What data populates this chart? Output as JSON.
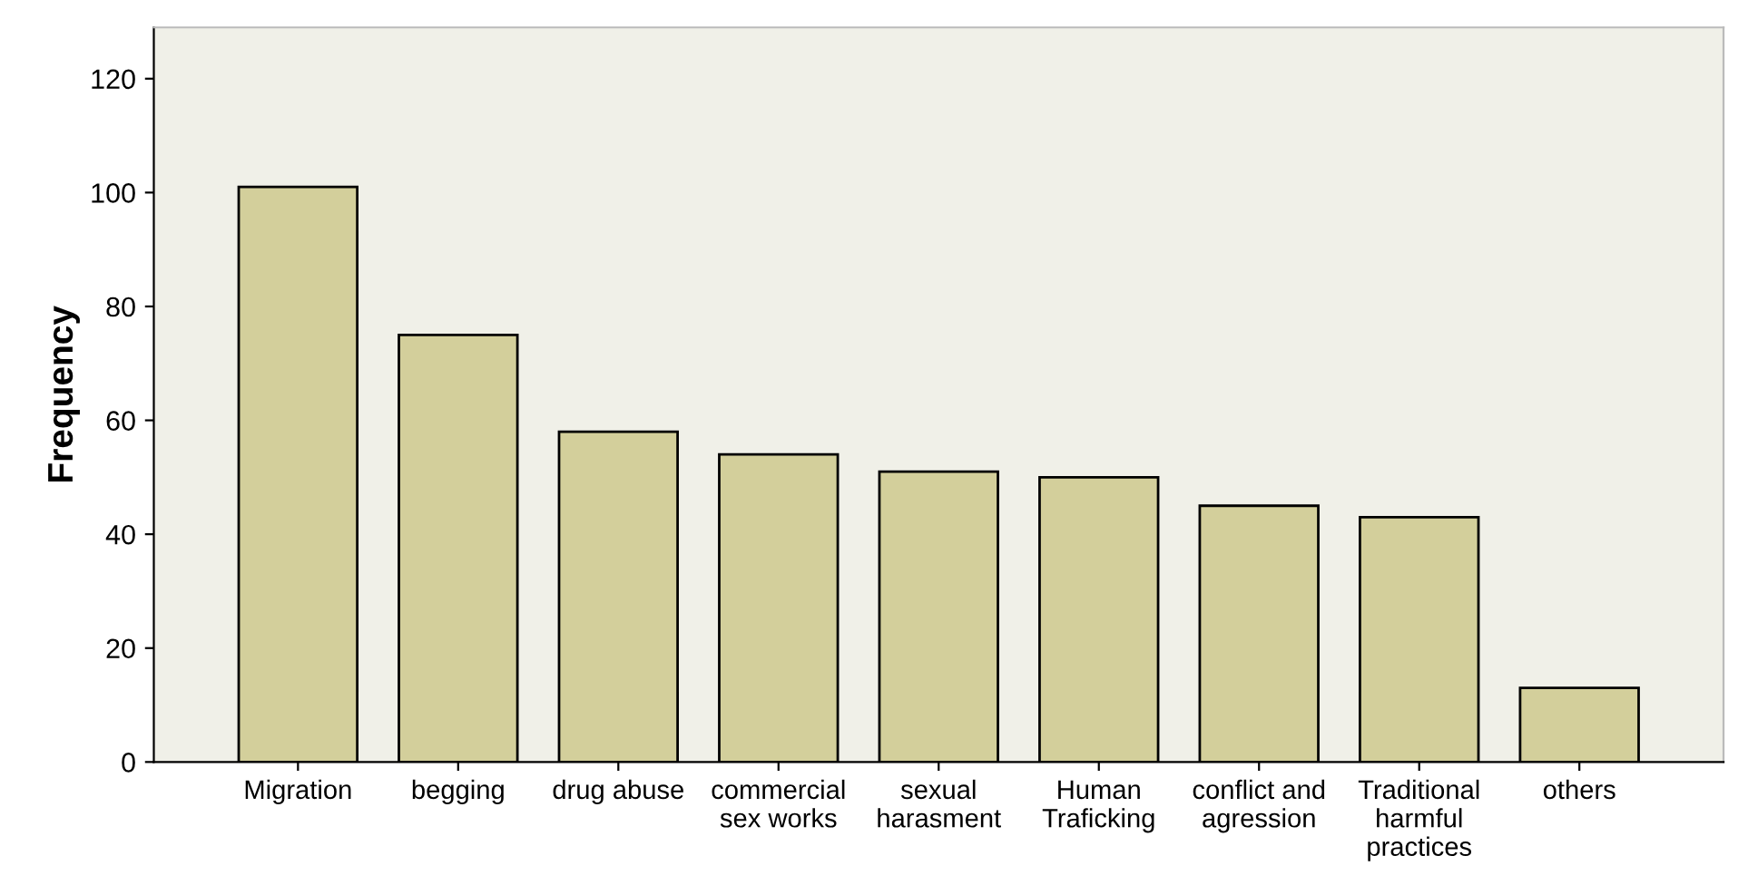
{
  "chart_data": {
    "type": "bar",
    "ylabel": "Frequency",
    "categories": [
      "Migration",
      "begging",
      "drug abuse",
      "commercial\nsex works",
      "sexual\nharasment",
      "Human\nTraficking",
      "conflict and\nagression",
      "Traditional\nharmful\npractices",
      "others"
    ],
    "values": [
      101,
      75,
      58,
      54,
      51,
      50,
      45,
      43,
      13
    ],
    "color": "#d3cf9b",
    "ylim": [
      0,
      129
    ],
    "yticks": [
      0,
      20,
      40,
      60,
      80,
      100,
      120
    ],
    "grid": false
  }
}
